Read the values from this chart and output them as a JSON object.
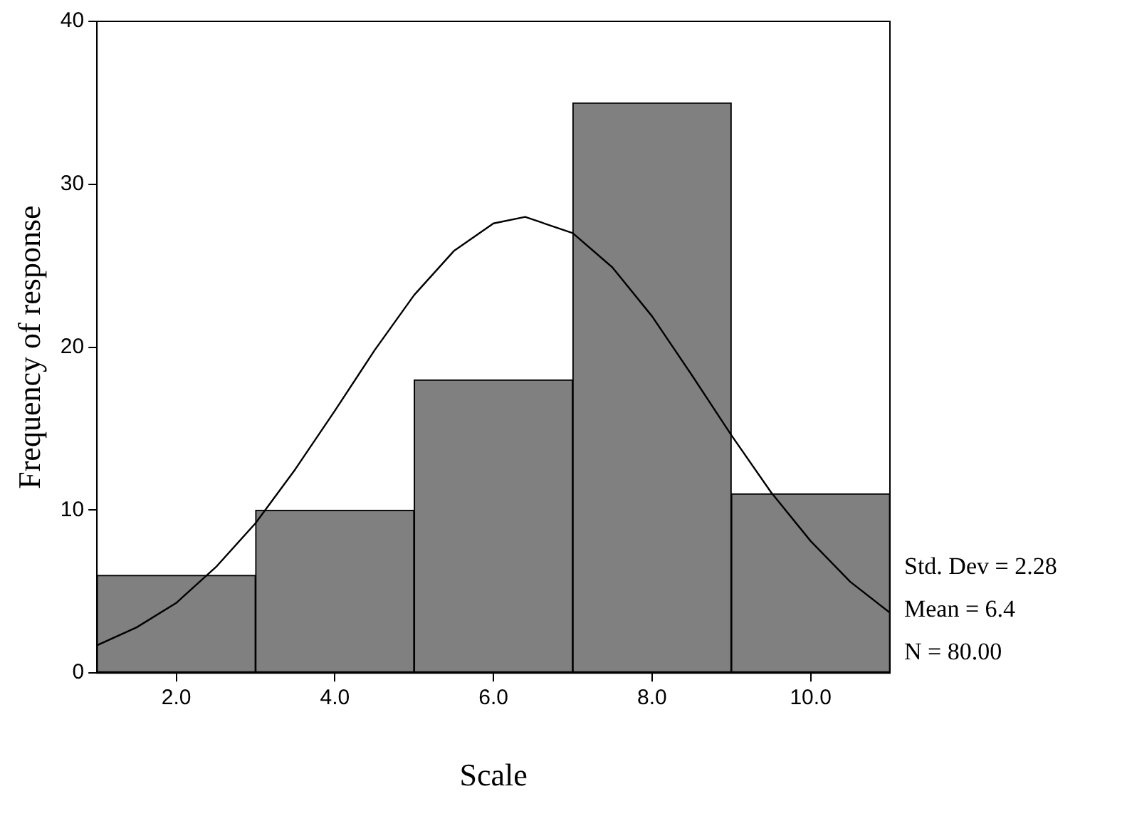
{
  "chart_data": {
    "type": "histogram",
    "xlabel": "Scale",
    "ylabel": "Frequency of response",
    "bins": [
      1,
      3,
      5,
      7,
      9,
      11
    ],
    "values": [
      6,
      10,
      18,
      35,
      11
    ],
    "color": "#808080",
    "series": [
      {
        "type": "line",
        "color": "#000000",
        "x": [
          1,
          1.5,
          2,
          2.5,
          3,
          3.5,
          4,
          4.5,
          5,
          5.5,
          6,
          6.4,
          7,
          7.5,
          8,
          8.5,
          9,
          9.5,
          10,
          10.5,
          11
        ],
        "values": [
          1.7,
          2.8,
          4.3,
          6.5,
          9.2,
          12.5,
          16.1,
          19.8,
          23.2,
          25.9,
          27.6,
          28,
          27,
          24.9,
          21.9,
          18.3,
          14.6,
          11.1,
          8.1,
          5.6,
          3.7
        ]
      }
    ],
    "xlim": [
      1,
      11
    ],
    "xticks": [
      {
        "value": 2,
        "label": "2.0"
      },
      {
        "value": 4,
        "label": "4.0"
      },
      {
        "value": 6,
        "label": "6.0"
      },
      {
        "value": 8,
        "label": "8.0"
      },
      {
        "value": 10,
        "label": "10.0"
      }
    ],
    "ylim": [
      0,
      40
    ],
    "yticks": [
      0,
      10,
      20,
      30,
      40
    ],
    "grid": false,
    "legend": false,
    "marker": "none",
    "annotations": [
      "Std. Dev = 2.28",
      "Mean = 6.4",
      "N = 80.00"
    ]
  }
}
